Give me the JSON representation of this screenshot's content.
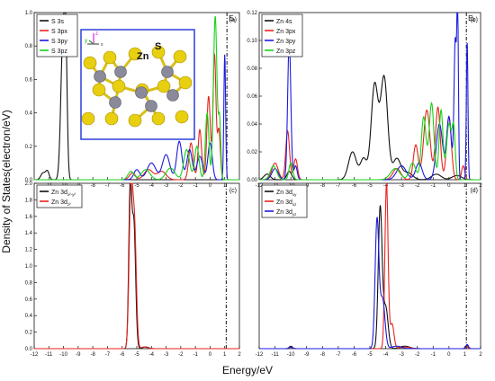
{
  "figure": {
    "ylabel": "Density of States(electron/eV)",
    "xlabel": "Energy/eV",
    "fermi_label": "E",
    "fermi_sub": "f",
    "inset": {
      "atom_zn": "Zn",
      "atom_s": "S",
      "axis_z": "z",
      "axis_y": "y",
      "axis_x": "x"
    }
  },
  "colors": {
    "black": "#111111",
    "red": "#e8231e",
    "blue": "#1a1adf",
    "green": "#17d317",
    "inset_border": "#2b3fd8",
    "atom_s": "#e8cf10",
    "atom_zn": "#8a8a9a"
  },
  "chart_data": [
    {
      "type": "line",
      "panel_label": "(a)",
      "xlim": [
        -12,
        2
      ],
      "ylim": [
        0,
        1.0
      ],
      "xticks": [
        "-11",
        "-10",
        "-9",
        "-8",
        "-7",
        "-6",
        "-5",
        "-4",
        "-3",
        "-2",
        "-1",
        "0",
        "1"
      ],
      "yticks": [
        "0.0",
        "0.2",
        "0.4",
        "0.6",
        "0.8",
        "1.0"
      ],
      "fermi_x": 1.15,
      "series": [
        {
          "name": "S 3s",
          "color": "black",
          "peaks": [
            [
              -11.4,
              0.04,
              0.15
            ],
            [
              -11.1,
              0.05,
              0.12
            ],
            [
              -10.05,
              0.8,
              0.14
            ],
            [
              -9.85,
              0.7,
              0.1
            ]
          ]
        },
        {
          "name": "S 3px",
          "color": "red",
          "peaks": [
            [
              -5.3,
              0.04,
              0.2
            ],
            [
              -4.2,
              0.06,
              0.3
            ],
            [
              -3.3,
              0.05,
              0.3
            ],
            [
              -1.3,
              0.22,
              0.15
            ],
            [
              -0.7,
              0.3,
              0.12
            ],
            [
              -0.1,
              0.5,
              0.12
            ],
            [
              0.3,
              0.75,
              0.1
            ],
            [
              0.6,
              0.3,
              0.1
            ]
          ]
        },
        {
          "name": "S 3py",
          "color": "blue",
          "peaks": [
            [
              -5.0,
              0.06,
              0.2
            ],
            [
              -4.0,
              0.1,
              0.3
            ],
            [
              -3.0,
              0.15,
              0.25
            ],
            [
              -2.1,
              0.23,
              0.18
            ],
            [
              -1.4,
              0.18,
              0.18
            ],
            [
              -0.7,
              0.14,
              0.2
            ],
            [
              0.0,
              0.22,
              0.15
            ],
            [
              1.0,
              0.75,
              0.06
            ]
          ]
        },
        {
          "name": "S 3pz",
          "color": "green",
          "peaks": [
            [
              -5.4,
              0.05,
              0.2
            ],
            [
              -4.4,
              0.06,
              0.3
            ],
            [
              -2.7,
              0.07,
              0.3
            ],
            [
              -1.6,
              0.18,
              0.2
            ],
            [
              -0.9,
              0.2,
              0.15
            ],
            [
              -0.2,
              0.4,
              0.12
            ],
            [
              0.35,
              0.98,
              0.12
            ],
            [
              0.65,
              0.35,
              0.08
            ]
          ]
        }
      ]
    },
    {
      "type": "line",
      "panel_label": "(b)",
      "xlim": [
        -12,
        2
      ],
      "ylim": [
        0,
        0.12
      ],
      "xticks": [
        "-12",
        "-11",
        "-10",
        "-9",
        "-8",
        "-7",
        "-6",
        "-5",
        "-4",
        "-3",
        "-2",
        "-1",
        "0",
        "1",
        "2"
      ],
      "yticks": [
        "0.00",
        "0.02",
        "0.04",
        "0.06",
        "0.08",
        "0.10",
        "0.12"
      ],
      "fermi_x": 1.1,
      "series": [
        {
          "name": "Zn 4s",
          "color": "black",
          "peaks": [
            [
              -11.5,
              0.004,
              0.2
            ],
            [
              -10.1,
              0.006,
              0.15
            ],
            [
              -6.1,
              0.02,
              0.25
            ],
            [
              -5.4,
              0.015,
              0.2
            ],
            [
              -4.7,
              0.068,
              0.22
            ],
            [
              -4.1,
              0.073,
              0.22
            ],
            [
              -3.3,
              0.015,
              0.25
            ],
            [
              -2.6,
              0.005,
              0.3
            ],
            [
              -0.8,
              0.004,
              0.3
            ],
            [
              0.5,
              0.003,
              0.3
            ]
          ]
        },
        {
          "name": "Zn 3px",
          "color": "red",
          "peaks": [
            [
              -11.0,
              0.012,
              0.2
            ],
            [
              -10.2,
              0.035,
              0.12
            ],
            [
              -9.7,
              0.015,
              0.12
            ],
            [
              -3.3,
              0.008,
              0.25
            ],
            [
              -2.1,
              0.025,
              0.15
            ],
            [
              -1.4,
              0.05,
              0.2
            ],
            [
              -0.7,
              0.052,
              0.15
            ],
            [
              0.0,
              0.045,
              0.15
            ],
            [
              0.9,
              0.01,
              0.1
            ]
          ]
        },
        {
          "name": "Zn 3py",
          "color": "blue",
          "peaks": [
            [
              -11.0,
              0.008,
              0.2
            ],
            [
              -10.1,
              0.1,
              0.1
            ],
            [
              -9.7,
              0.01,
              0.1
            ],
            [
              -3.0,
              0.01,
              0.3
            ],
            [
              -1.9,
              0.012,
              0.2
            ],
            [
              -0.6,
              0.04,
              0.2
            ],
            [
              0.0,
              0.045,
              0.15
            ],
            [
              0.4,
              0.1,
              0.08
            ],
            [
              0.55,
              0.115,
              0.05
            ],
            [
              1.15,
              0.1,
              0.05
            ]
          ]
        },
        {
          "name": "Zn 3pz",
          "color": "green",
          "peaks": [
            [
              -11.1,
              0.01,
              0.2
            ],
            [
              -10.0,
              0.012,
              0.12
            ],
            [
              -3.4,
              0.008,
              0.3
            ],
            [
              -2.3,
              0.012,
              0.2
            ],
            [
              -1.6,
              0.045,
              0.15
            ],
            [
              -1.1,
              0.055,
              0.15
            ],
            [
              -0.5,
              0.05,
              0.12
            ],
            [
              0.0,
              0.04,
              0.15
            ],
            [
              0.3,
              0.035,
              0.1
            ]
          ]
        }
      ]
    },
    {
      "type": "line",
      "panel_label": "(c)",
      "xlim": [
        -12,
        2
      ],
      "ylim": [
        0,
        2.0
      ],
      "xticks": [
        "-12",
        "-11",
        "-10",
        "-9",
        "-8",
        "-7",
        "-6",
        "-5",
        "-4",
        "-3",
        "-2",
        "-1",
        "0",
        "1",
        "2"
      ],
      "yticks": [
        "0.0",
        "0.2",
        "0.4",
        "0.6",
        "0.8",
        "1.0",
        "1.2",
        "1.4",
        "1.6",
        "1.8",
        "2.0"
      ],
      "fermi_x": 1.1,
      "series": [
        {
          "name": "Zn 3dx2-y2",
          "label_main": "Zn 3d",
          "label_sub": "x²-y²",
          "color": "black",
          "peaks": [
            [
              -5.45,
              1.9,
              0.1
            ],
            [
              -5.2,
              1.5,
              0.12
            ],
            [
              -4.4,
              0.02,
              0.2
            ]
          ]
        },
        {
          "name": "Zn 3dz2",
          "label_main": "Zn 3d",
          "label_sub": "z²",
          "color": "red",
          "peaks": [
            [
              -5.4,
              1.95,
              0.12
            ],
            [
              -5.15,
              1.4,
              0.12
            ],
            [
              -4.5,
              0.02,
              0.2
            ]
          ]
        }
      ]
    },
    {
      "type": "line",
      "panel_label": "(d)",
      "xlim": [
        -12,
        2
      ],
      "ylim": [
        0,
        2.0
      ],
      "xticks": [
        "-12",
        "-11",
        "-10",
        "-9",
        "-8",
        "-7",
        "-6",
        "-5",
        "-4",
        "-3",
        "-2",
        "-1",
        "0",
        "1",
        "2"
      ],
      "yticks": [],
      "fermi_x": 1.1,
      "series": [
        {
          "name": "Zn 3dxy",
          "label_main": "Zn 3d",
          "label_sub": "xy",
          "color": "black",
          "peaks": [
            [
              -10.0,
              0.03,
              0.1
            ],
            [
              -4.35,
              1.7,
              0.12
            ],
            [
              -4.0,
              0.5,
              0.15
            ],
            [
              -2.8,
              0.03,
              0.3
            ],
            [
              1.15,
              0.04,
              0.08
            ]
          ]
        },
        {
          "name": "Zn 3dxz",
          "label_main": "Zn 3d",
          "label_sub": "xz",
          "color": "red",
          "peaks": [
            [
              -10.0,
              0.02,
              0.1
            ],
            [
              -3.95,
              2.0,
              0.1
            ],
            [
              -3.6,
              0.3,
              0.12
            ],
            [
              -2.8,
              0.02,
              0.3
            ],
            [
              1.1,
              0.03,
              0.08
            ]
          ]
        },
        {
          "name": "Zn 3dyz",
          "label_main": "Zn 3d",
          "label_sub": "yz",
          "color": "blue",
          "peaks": [
            [
              -10.0,
              0.02,
              0.1
            ],
            [
              -4.55,
              1.55,
              0.12
            ],
            [
              -4.2,
              0.6,
              0.15
            ],
            [
              -3.3,
              0.03,
              0.3
            ],
            [
              1.15,
              0.05,
              0.08
            ]
          ]
        }
      ]
    }
  ]
}
